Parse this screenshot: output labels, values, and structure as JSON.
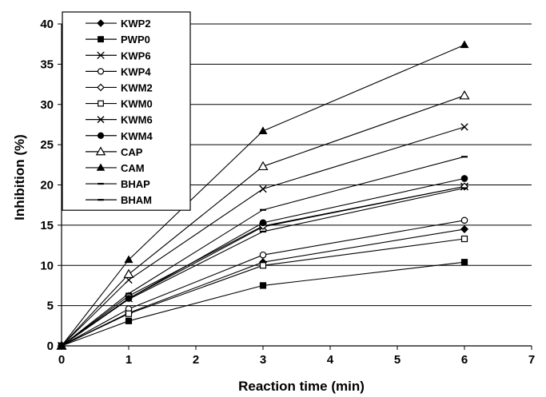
{
  "chart_data": {
    "type": "line",
    "xlabel": "Reaction time (min)",
    "ylabel": "Inhibition (%)",
    "xlim": [
      0,
      7
    ],
    "ylim": [
      0,
      40
    ],
    "xticks": [
      0,
      1,
      2,
      3,
      4,
      5,
      6,
      7
    ],
    "yticks": [
      0,
      5,
      10,
      15,
      20,
      25,
      30,
      35,
      40
    ],
    "grid": "horizontal",
    "legend_position": "top-left",
    "x": [
      0,
      1,
      3,
      6
    ],
    "series": [
      {
        "name": "KWP2",
        "marker": "diamond-filled",
        "values": [
          0,
          4.1,
          10.4,
          14.5
        ]
      },
      {
        "name": "PWP0",
        "marker": "square-filled",
        "values": [
          0,
          3.1,
          7.5,
          10.4
        ]
      },
      {
        "name": "KWP6",
        "marker": "asterisk",
        "values": [
          0,
          5.9,
          14.8,
          19.8
        ]
      },
      {
        "name": "KWP4",
        "marker": "circle-open",
        "values": [
          0,
          4.6,
          11.3,
          15.6
        ]
      },
      {
        "name": "KWM2",
        "marker": "diamond-open",
        "values": [
          0,
          6.2,
          14.9,
          19.8
        ]
      },
      {
        "name": "KWM0",
        "marker": "square-open",
        "values": [
          0,
          4.0,
          10.0,
          13.3
        ]
      },
      {
        "name": "KWM6",
        "marker": "x",
        "values": [
          0,
          8.2,
          19.5,
          27.2
        ]
      },
      {
        "name": "KWM4",
        "marker": "circle-filled",
        "values": [
          0,
          5.9,
          15.3,
          20.8
        ]
      },
      {
        "name": "CAP",
        "marker": "triangle-open",
        "values": [
          0,
          8.9,
          22.3,
          31.1
        ]
      },
      {
        "name": "CAM",
        "marker": "triangle-filled",
        "values": [
          0,
          10.7,
          26.7,
          37.4
        ]
      },
      {
        "name": "BHAP",
        "marker": "dash",
        "values": [
          0,
          6.5,
          16.9,
          23.5
        ]
      },
      {
        "name": "BHAM",
        "marker": "dash",
        "values": [
          0,
          5.8,
          14.2,
          19.6
        ]
      }
    ]
  }
}
